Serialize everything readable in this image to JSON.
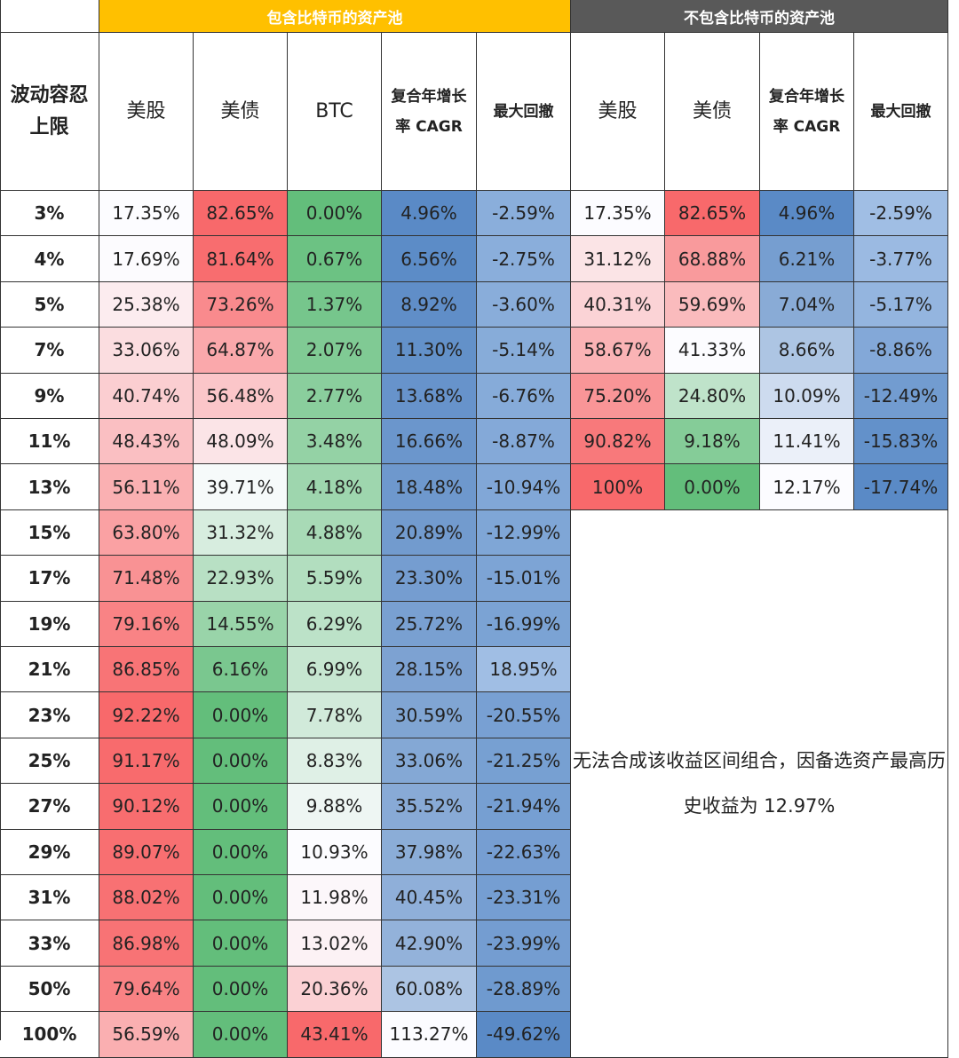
{
  "header": {
    "group_with": "包含比特币的资产池",
    "group_without": "不包含比特币的资产池"
  },
  "columns": {
    "limit": "波动容忍上限",
    "with": [
      "美股",
      "美债",
      "BTC",
      "复合年增长率 CAGR",
      "最大回撤"
    ],
    "without": [
      "美股",
      "美债",
      "复合年增长率 CAGR",
      "最大回撤"
    ]
  },
  "rows": [
    {
      "limit": "3%",
      "with": [
        "17.35%",
        "82.65%",
        "0.00%",
        "4.96%",
        "-2.59%"
      ],
      "without": [
        "17.35%",
        "82.65%",
        "4.96%",
        "-2.59%"
      ]
    },
    {
      "limit": "4%",
      "with": [
        "17.69%",
        "81.64%",
        "0.67%",
        "6.56%",
        "-2.75%"
      ],
      "without": [
        "31.12%",
        "68.88%",
        "6.21%",
        "-3.77%"
      ]
    },
    {
      "limit": "5%",
      "with": [
        "25.38%",
        "73.26%",
        "1.37%",
        "8.92%",
        "-3.60%"
      ],
      "without": [
        "40.31%",
        "59.69%",
        "7.04%",
        "-5.17%"
      ]
    },
    {
      "limit": "7%",
      "with": [
        "33.06%",
        "64.87%",
        "2.07%",
        "11.30%",
        "-5.14%"
      ],
      "without": [
        "58.67%",
        "41.33%",
        "8.66%",
        "-8.86%"
      ]
    },
    {
      "limit": "9%",
      "with": [
        "40.74%",
        "56.48%",
        "2.77%",
        "13.68%",
        "-6.76%"
      ],
      "without": [
        "75.20%",
        "24.80%",
        "10.09%",
        "-12.49%"
      ]
    },
    {
      "limit": "11%",
      "with": [
        "48.43%",
        "48.09%",
        "3.48%",
        "16.66%",
        "-8.87%"
      ],
      "without": [
        "90.82%",
        "9.18%",
        "11.41%",
        "-15.83%"
      ]
    },
    {
      "limit": "13%",
      "with": [
        "56.11%",
        "39.71%",
        "4.18%",
        "18.48%",
        "-10.94%"
      ],
      "without": [
        "100%",
        "0.00%",
        "12.17%",
        "-17.74%"
      ]
    },
    {
      "limit": "15%",
      "with": [
        "63.80%",
        "31.32%",
        "4.88%",
        "20.89%",
        "-12.99%"
      ]
    },
    {
      "limit": "17%",
      "with": [
        "71.48%",
        "22.93%",
        "5.59%",
        "23.30%",
        "-15.01%"
      ]
    },
    {
      "limit": "19%",
      "with": [
        "79.16%",
        "14.55%",
        "6.29%",
        "25.72%",
        "-16.99%"
      ]
    },
    {
      "limit": "21%",
      "with": [
        "86.85%",
        "6.16%",
        "6.99%",
        "28.15%",
        "18.95%"
      ]
    },
    {
      "limit": "23%",
      "with": [
        "92.22%",
        "0.00%",
        "7.78%",
        "30.59%",
        "-20.55%"
      ]
    },
    {
      "limit": "25%",
      "with": [
        "91.17%",
        "0.00%",
        "8.83%",
        "33.06%",
        "-21.25%"
      ]
    },
    {
      "limit": "27%",
      "with": [
        "90.12%",
        "0.00%",
        "9.88%",
        "35.52%",
        "-21.94%"
      ]
    },
    {
      "limit": "29%",
      "with": [
        "89.07%",
        "0.00%",
        "10.93%",
        "37.98%",
        "-22.63%"
      ]
    },
    {
      "limit": "31%",
      "with": [
        "88.02%",
        "0.00%",
        "11.98%",
        "40.45%",
        "-23.31%"
      ]
    },
    {
      "limit": "33%",
      "with": [
        "86.98%",
        "0.00%",
        "13.02%",
        "42.90%",
        "-23.99%"
      ]
    },
    {
      "limit": "50%",
      "with": [
        "79.64%",
        "0.00%",
        "20.36%",
        "60.08%",
        "-28.89%"
      ]
    },
    {
      "limit": "100%",
      "with": [
        "56.59%",
        "0.00%",
        "43.41%",
        "113.27%",
        "-49.62%"
      ]
    }
  ],
  "note": "无法合成该收益区间组合，因备选资产最高历史收益为 12.97%"
}
